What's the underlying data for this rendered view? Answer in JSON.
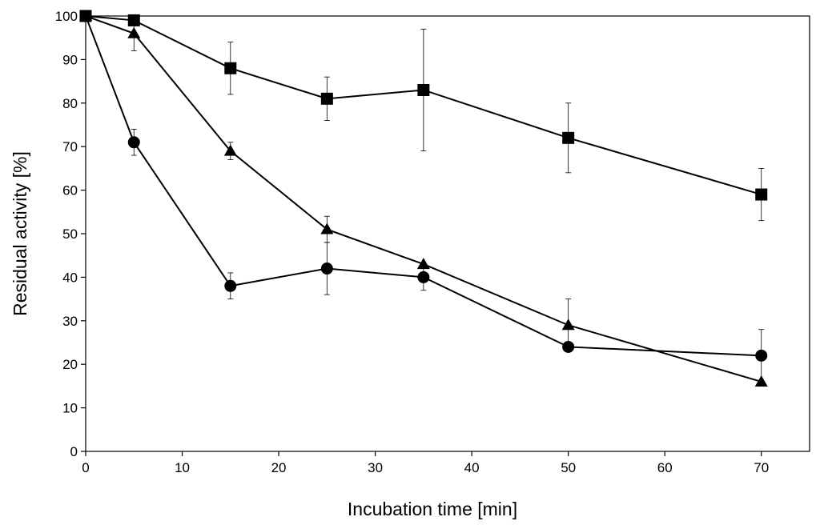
{
  "chart_data": {
    "type": "line",
    "title": "",
    "xlabel": "Incubation time [min]",
    "ylabel": "Residual activity [%]",
    "xlim": [
      0,
      75
    ],
    "ylim": [
      0,
      100
    ],
    "x_ticks": [
      0,
      10,
      20,
      30,
      40,
      50,
      60,
      70
    ],
    "y_ticks": [
      0,
      10,
      20,
      30,
      40,
      50,
      60,
      70,
      80,
      90,
      100
    ],
    "grid": false,
    "legend": "none",
    "series": [
      {
        "name": "square series",
        "marker": "square",
        "x": [
          0,
          5,
          15,
          25,
          35,
          50,
          70
        ],
        "y": [
          100,
          99,
          88,
          81,
          83,
          72,
          59
        ],
        "error": [
          0,
          0,
          6,
          5,
          14,
          8,
          6
        ]
      },
      {
        "name": "triangle series",
        "marker": "triangle",
        "x": [
          0,
          5,
          15,
          25,
          35,
          50,
          70
        ],
        "y": [
          100,
          96,
          69,
          51,
          43,
          29,
          16
        ],
        "error": [
          0,
          4,
          2,
          3,
          0,
          6,
          0
        ]
      },
      {
        "name": "circle series",
        "marker": "circle",
        "x": [
          0,
          5,
          15,
          25,
          35,
          50,
          70
        ],
        "y": [
          100,
          71,
          38,
          42,
          40,
          24,
          22
        ],
        "error": [
          0,
          3,
          3,
          6,
          3,
          0,
          6
        ]
      }
    ]
  },
  "colors": {
    "line": "#000000",
    "background": "#ffffff"
  }
}
